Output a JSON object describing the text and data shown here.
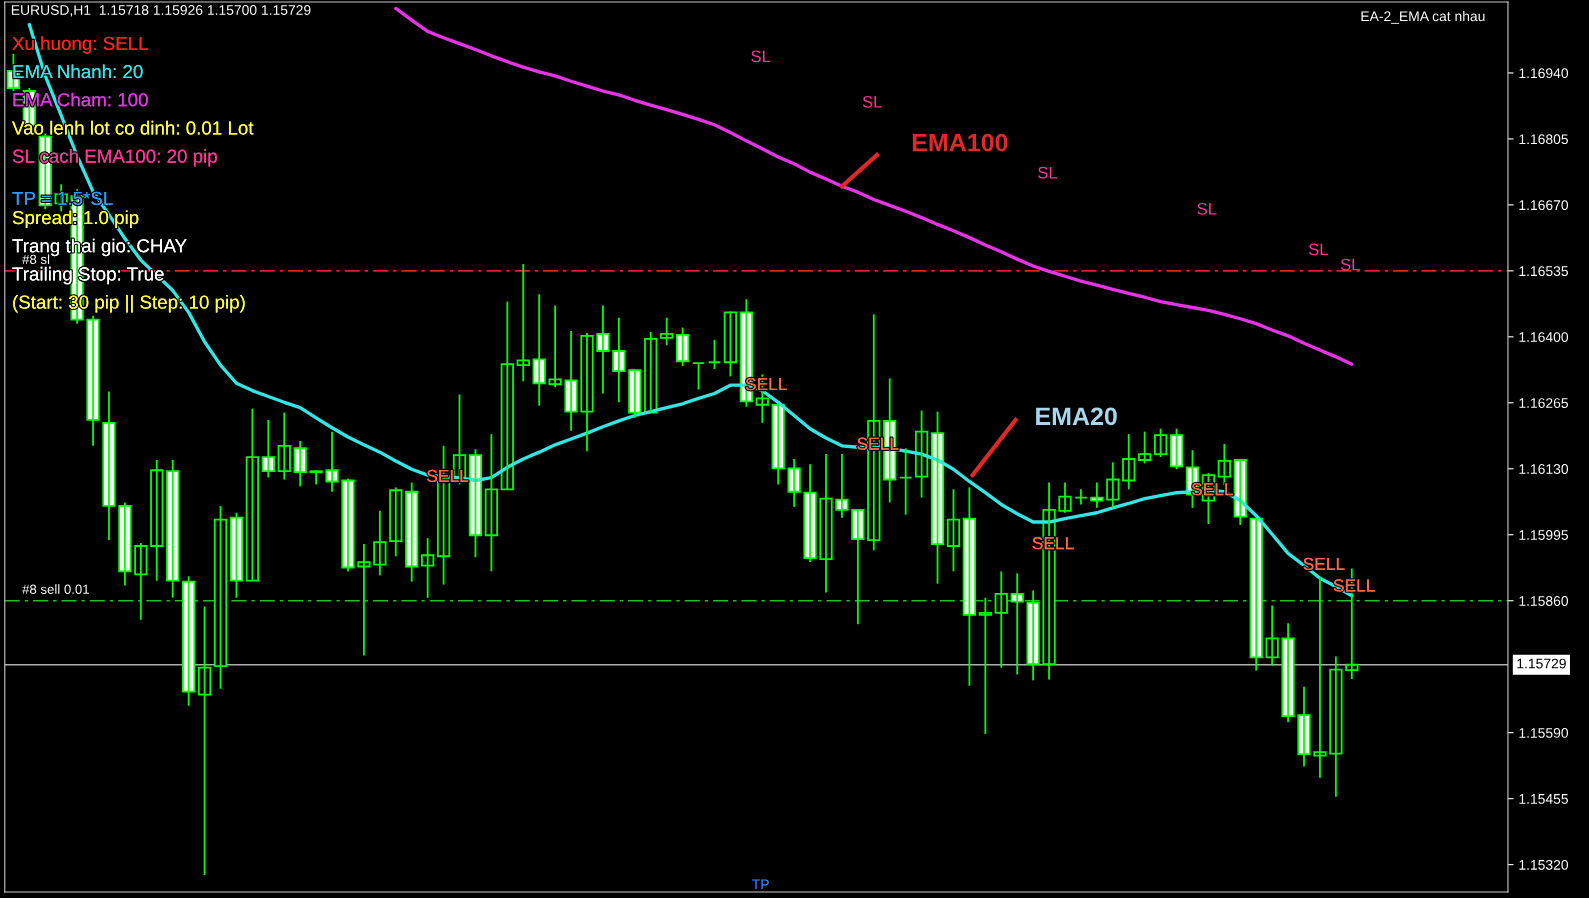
{
  "chart_data": {
    "type": "candlestick",
    "title": "EURUSD,H1  1.15718 1.15926 1.15700 1.15729",
    "subtitle": "EA-2_EMA cat nhau",
    "categories": [
      null,
      null,
      null,
      null,
      null,
      null,
      null,
      null,
      null,
      null,
      null,
      null,
      null,
      null,
      null,
      null,
      null,
      null,
      null,
      null,
      null,
      null,
      null,
      null,
      null,
      null,
      null,
      null,
      null,
      null,
      null,
      null,
      null,
      null,
      null,
      null,
      null,
      null,
      null,
      null,
      null,
      null,
      null,
      null,
      null,
      null,
      null,
      null,
      null,
      null,
      null,
      null,
      null,
      null,
      null,
      null,
      null,
      null,
      null,
      null,
      null,
      null,
      null,
      null,
      null,
      null,
      null,
      null,
      null,
      null,
      null,
      null,
      null,
      null,
      null,
      null,
      null,
      null,
      null,
      null,
      null,
      null,
      null,
      null,
      null
    ],
    "ohlc": [
      [
        1.16944,
        1.16979,
        1.16903,
        1.16909
      ],
      [
        1.16903,
        1.16909,
        1.16826,
        1.16832
      ],
      [
        1.1681,
        1.16816,
        1.16661,
        1.16669
      ],
      [
        1.16673,
        1.16712,
        1.16657,
        1.16692
      ],
      [
        1.16688,
        1.16702,
        1.16427,
        1.16435
      ],
      [
        1.16435,
        1.16443,
        1.16177,
        1.1623
      ],
      [
        1.16224,
        1.16288,
        1.15984,
        1.16054
      ],
      [
        1.16054,
        1.16061,
        1.15891,
        1.1592
      ],
      [
        1.15914,
        1.15978,
        1.15821,
        1.15972
      ],
      [
        1.15972,
        1.16148,
        1.15901,
        1.16127
      ],
      [
        1.16125,
        1.16148,
        1.15866,
        1.15901
      ],
      [
        1.15899,
        1.1591,
        1.15645,
        1.15674
      ],
      [
        1.15668,
        1.15848,
        1.15299,
        1.15723
      ],
      [
        1.15726,
        1.16054,
        1.1568,
        1.16026
      ],
      [
        1.1603,
        1.1604,
        1.15866,
        1.15901
      ],
      [
        1.15901,
        1.16253,
        1.15901,
        1.16154
      ],
      [
        1.16154,
        1.1623,
        1.16112,
        1.16125
      ],
      [
        1.16125,
        1.16245,
        1.16108,
        1.16177
      ],
      [
        1.16172,
        1.16187,
        1.16094,
        1.16123
      ],
      [
        1.16125,
        1.16127,
        1.16098,
        1.16123
      ],
      [
        1.16127,
        1.16206,
        1.16083,
        1.16104
      ],
      [
        1.16106,
        1.1611,
        1.1592,
        1.15928
      ],
      [
        1.1593,
        1.15976,
        1.15748,
        1.15939
      ],
      [
        1.15934,
        1.16044,
        1.15912,
        1.1598
      ],
      [
        1.15982,
        1.16092,
        1.15951,
        1.16086
      ],
      [
        1.16083,
        1.16102,
        1.15899,
        1.1593
      ],
      [
        1.15932,
        1.15988,
        1.15866,
        1.15953
      ],
      [
        1.15951,
        1.16177,
        1.15893,
        1.16108
      ],
      [
        1.16108,
        1.16282,
        1.16098,
        1.16158
      ],
      [
        1.16158,
        1.1617,
        1.15949,
        1.15994
      ],
      [
        1.15994,
        1.16201,
        1.1592,
        1.16088
      ],
      [
        1.16088,
        1.16472,
        1.16088,
        1.16344
      ],
      [
        1.16342,
        1.16549,
        1.16309,
        1.16352
      ],
      [
        1.16354,
        1.16487,
        1.16259,
        1.16305
      ],
      [
        1.16303,
        1.16464,
        1.16297,
        1.16313
      ],
      [
        1.16311,
        1.16412,
        1.16208,
        1.16247
      ],
      [
        1.16247,
        1.16408,
        1.16166,
        1.16402
      ],
      [
        1.16406,
        1.16464,
        1.16284,
        1.16371
      ],
      [
        1.16371,
        1.16439,
        1.16266,
        1.1633
      ],
      [
        1.16332,
        1.16332,
        1.16234,
        1.16245
      ],
      [
        1.16245,
        1.1641,
        1.16245,
        1.16396
      ],
      [
        1.16398,
        1.16439,
        1.16383,
        1.16406
      ],
      [
        1.16404,
        1.16419,
        1.1634,
        1.1635
      ],
      [
        1.16346,
        1.16346,
        1.16292,
        1.16346
      ],
      [
        1.16348,
        1.16394,
        1.16334,
        1.16348
      ],
      [
        1.16348,
        1.16452,
        1.16319,
        1.1645
      ],
      [
        1.1645,
        1.16477,
        1.16257,
        1.16268
      ],
      [
        1.16261,
        1.16323,
        1.16224,
        1.16274
      ],
      [
        1.16261,
        1.16261,
        1.16098,
        1.16131
      ],
      [
        1.16131,
        1.1615,
        1.16052,
        1.16083
      ],
      [
        1.16081,
        1.16139,
        1.15939,
        1.15947
      ],
      [
        1.15945,
        1.1616,
        1.15877,
        1.16069
      ],
      [
        1.16067,
        1.1616,
        1.1603,
        1.16046
      ],
      [
        1.16046,
        1.16046,
        1.15812,
        1.15986
      ],
      [
        1.15984,
        1.16446,
        1.15963,
        1.16228
      ],
      [
        1.16228,
        1.16315,
        1.16061,
        1.16108
      ],
      [
        1.16112,
        1.16172,
        1.16036,
        1.16112
      ],
      [
        1.16114,
        1.16249,
        1.16071,
        1.16206
      ],
      [
        1.16203,
        1.16247,
        1.15895,
        1.15976
      ],
      [
        1.15972,
        1.16088,
        1.1592,
        1.16026
      ],
      [
        1.16028,
        1.16092,
        1.15686,
        1.15831
      ],
      [
        1.15831,
        1.15866,
        1.15587,
        1.15835
      ],
      [
        1.15835,
        1.1592,
        1.15723,
        1.15874
      ],
      [
        1.15874,
        1.15916,
        1.15709,
        1.15858
      ],
      [
        1.15856,
        1.15881,
        1.15697,
        1.1573
      ],
      [
        1.1573,
        1.16102,
        1.15699,
        1.16046
      ],
      [
        1.16044,
        1.16102,
        1.1604,
        1.16073
      ],
      [
        1.16071,
        1.16088,
        1.16057,
        1.16071
      ],
      [
        1.16071,
        1.16102,
        1.1605,
        1.16065
      ],
      [
        1.16067,
        1.16143,
        1.1605,
        1.16108
      ],
      [
        1.16106,
        1.16201,
        1.16088,
        1.1615
      ],
      [
        1.16148,
        1.16206,
        1.16141,
        1.1616
      ],
      [
        1.1616,
        1.16212,
        1.16154,
        1.16199
      ],
      [
        1.16199,
        1.16212,
        1.16129,
        1.16135
      ],
      [
        1.16133,
        1.16168,
        1.1605,
        1.16077
      ],
      [
        1.16065,
        1.16121,
        1.16017,
        1.16117
      ],
      [
        1.16114,
        1.16181,
        1.16096,
        1.16146
      ],
      [
        1.16148,
        1.16148,
        1.16015,
        1.16032
      ],
      [
        1.16028,
        1.16028,
        1.15717,
        1.15744
      ],
      [
        1.15744,
        1.1585,
        1.15727,
        1.15783
      ],
      [
        1.15783,
        1.15814,
        1.15612,
        1.15624
      ],
      [
        1.15626,
        1.15684,
        1.15521,
        1.15546
      ],
      [
        1.15543,
        1.15908,
        1.15498,
        1.1555
      ],
      [
        1.15547,
        1.15746,
        1.15459,
        1.15719
      ],
      [
        1.15718,
        1.15926,
        1.157,
        1.15729
      ]
    ],
    "series": [
      {
        "type": "line",
        "color": "#33e6e6",
        "values": [
          null,
          1.17039,
          1.16934,
          1.16853,
          1.1677,
          1.16697,
          1.1665,
          1.16601,
          1.16557,
          1.16526,
          1.16495,
          1.1645,
          1.1639,
          1.16342,
          1.16305,
          1.1629,
          1.16278,
          1.16266,
          1.16255,
          1.16234,
          1.16214,
          1.16195,
          1.16179,
          1.16164,
          1.16146,
          1.16129,
          1.16117,
          1.16114,
          1.16112,
          1.16106,
          1.16112,
          1.16133,
          1.1615,
          1.16164,
          1.16179,
          1.16191,
          1.16203,
          1.16216,
          1.16228,
          1.16239,
          1.16247,
          1.16255,
          1.16263,
          1.16274,
          1.16284,
          1.16301,
          1.16301,
          1.1629,
          1.16266,
          1.16239,
          1.16212,
          1.16193,
          1.16177,
          1.16174,
          1.16174,
          1.16172,
          1.16166,
          1.1616,
          1.16148,
          1.16129,
          1.16104,
          1.16081,
          1.16057,
          1.16038,
          1.16021,
          1.16021,
          1.16028,
          1.16034,
          1.1604,
          1.1605,
          1.16059,
          1.16069,
          1.16075,
          1.16081,
          1.16083,
          1.16086,
          1.16083,
          1.16065,
          1.16034,
          1.15996,
          1.15957,
          1.15932,
          1.15906,
          1.15889,
          1.1587
        ]
      },
      {
        "type": "line",
        "color": "#e633e6",
        "values": [
          null,
          null,
          null,
          null,
          null,
          null,
          null,
          null,
          null,
          null,
          null,
          null,
          null,
          null,
          null,
          null,
          null,
          null,
          null,
          null,
          null,
          null,
          null,
          null,
          1.17072,
          1.17048,
          1.17025,
          1.17012,
          1.17,
          1.16988,
          1.16975,
          1.16963,
          1.16952,
          1.16942,
          1.16934,
          1.16923,
          1.16913,
          1.16903,
          1.16895,
          1.16884,
          1.16874,
          1.16865,
          1.16855,
          1.16845,
          1.16834,
          1.16818,
          1.16801,
          1.16785,
          1.16768,
          1.16754,
          1.16737,
          1.16723,
          1.16708,
          1.16696,
          1.16681,
          1.16669,
          1.16657,
          1.16644,
          1.1663,
          1.16617,
          1.16603,
          1.16588,
          1.16574,
          1.16559,
          1.16545,
          1.16534,
          1.16524,
          1.16514,
          1.16506,
          1.16497,
          1.16489,
          1.16481,
          1.16472,
          1.16466,
          1.1646,
          1.16454,
          1.16446,
          1.16437,
          1.16427,
          1.16414,
          1.16402,
          1.16387,
          1.16373,
          1.16359,
          1.16344
        ]
      }
    ],
    "ylim": [
      1.15264,
      1.17085
    ],
    "yticks": [
      {
        "value": 1.1532,
        "label": "1.15320"
      },
      {
        "value": 1.15455,
        "label": "1.15455"
      },
      {
        "value": 1.1559,
        "label": "1.15590"
      },
      {
        "value": 1.1586,
        "label": "1.15860"
      },
      {
        "value": 1.15995,
        "label": "1.15995"
      },
      {
        "value": 1.1613,
        "label": "1.16130"
      },
      {
        "value": 1.16265,
        "label": "1.16265"
      },
      {
        "value": 1.164,
        "label": "1.16400"
      },
      {
        "value": 1.16535,
        "label": "1.16535"
      },
      {
        "value": 1.1667,
        "label": "1.16670"
      },
      {
        "value": 1.16805,
        "label": "1.16805"
      },
      {
        "value": 1.1694,
        "label": "1.16940"
      }
    ],
    "tick_labels": "y",
    "ref_lines": [
      {
        "axis": "y",
        "value": 1.16535,
        "label": "#8 sl",
        "color": "#e02020",
        "line_style": "dashed"
      },
      {
        "axis": "y",
        "value": 1.1586,
        "label": "#8 sell 0.01",
        "color": "#20c020",
        "line_style": "dashed"
      },
      {
        "axis": "y",
        "value": 1.15729,
        "label": "1.15729",
        "color": "#b0b0b0",
        "line_style": "solid"
      }
    ],
    "annotations": [
      "Xu huong: SELL",
      "EMA Nhanh: 20",
      "EMA Cham: 100",
      "Vao lenh lot co dinh: 0.01 Lot",
      "SL cach EMA100: 20 pip",
      "TP = 1.5*SL",
      "Spread: 1.0 pip",
      "Trang thai gio: CHAY",
      "Trailing Stop: True",
      "(Start: 30 pip || Step: 10 pip)",
      "EMA100",
      "EMA20",
      "TP",
      "SL",
      "SL",
      "SL",
      "SL",
      "SL",
      "SL",
      {
        "text": "SELL",
        "y": 1.1609
      },
      {
        "text": "SELL",
        "y": 1.16278
      },
      {
        "text": "SELL",
        "y": 1.16156
      },
      {
        "text": "SELL",
        "y": 1.15997
      },
      {
        "text": "SELL",
        "y": 1.16063
      },
      {
        "text": "SELL",
        "y": 1.1591
      },
      {
        "text": "SELL",
        "y": 1.15866
      }
    ],
    "grid": false,
    "legend": false
  }
}
